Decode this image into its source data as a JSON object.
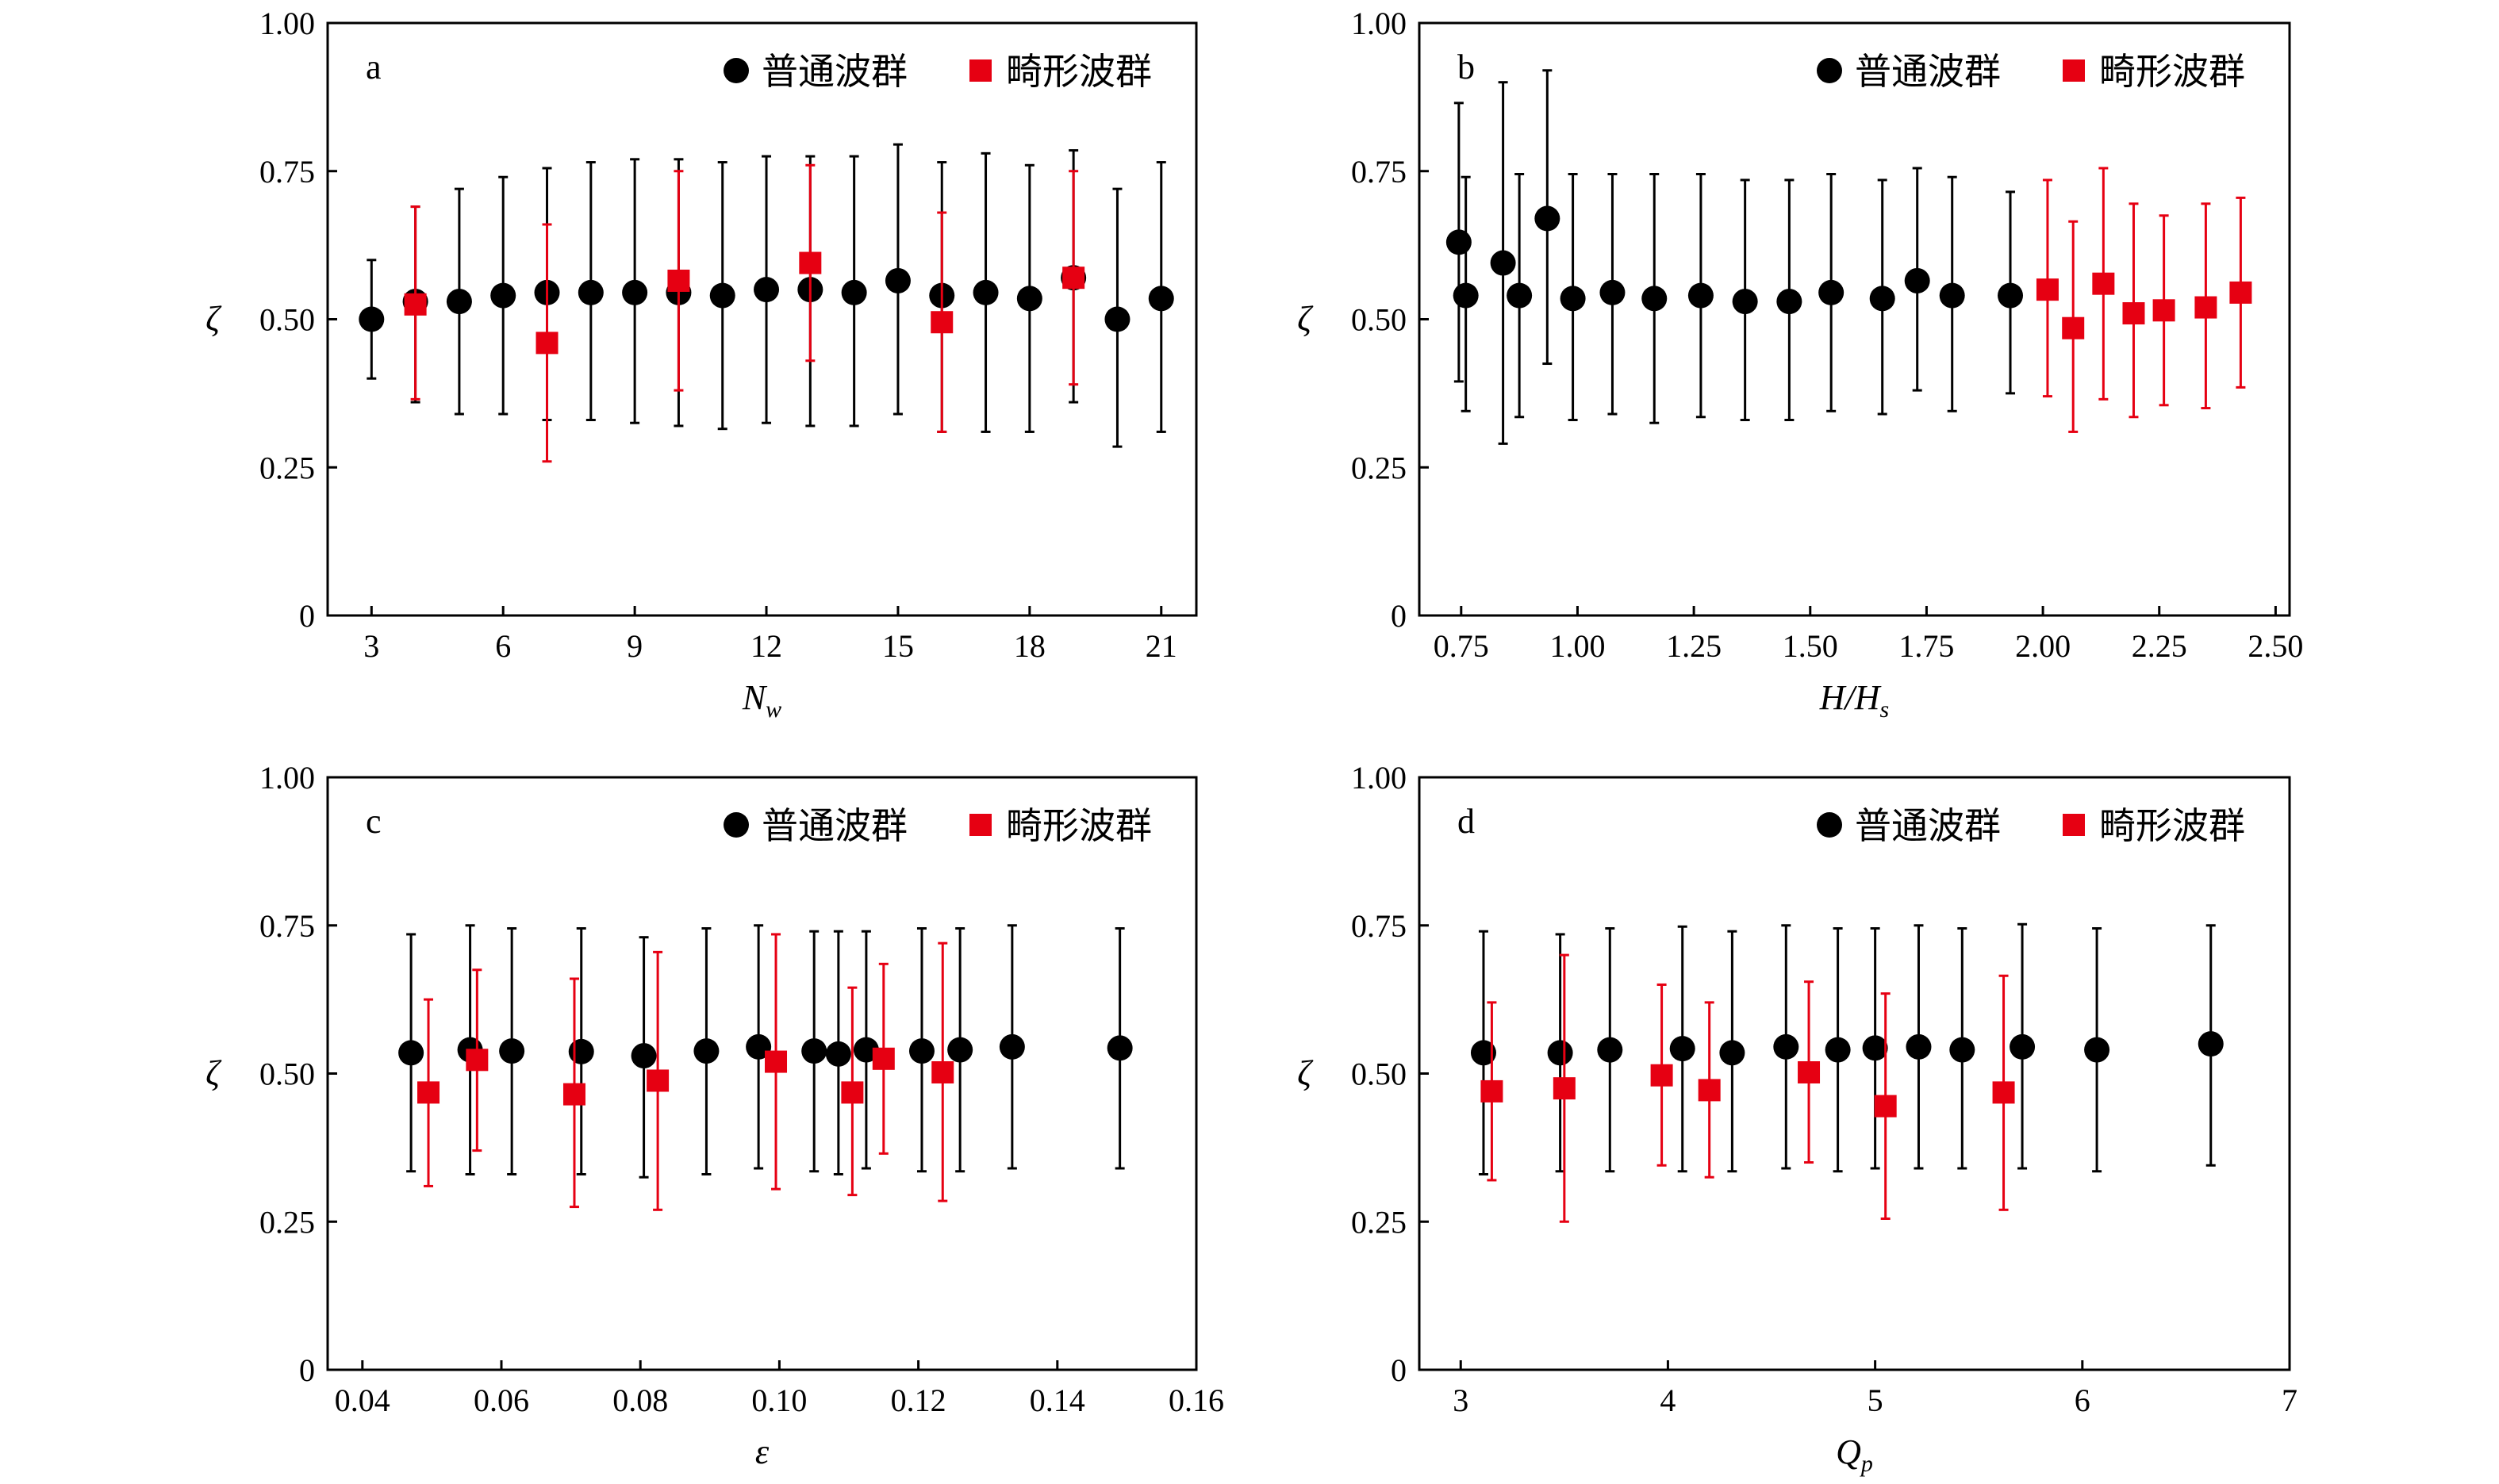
{
  "chart_data": [
    {
      "type": "scatter",
      "panel_label": "a",
      "xlabel": "N",
      "xlabel_sub": "w",
      "ylabel": "ζ",
      "xlim": [
        2,
        21.8
      ],
      "ylim": [
        0,
        1
      ],
      "xticks": [
        3,
        6,
        9,
        12,
        15,
        18,
        21
      ],
      "xtick_labels": [
        "3",
        "6",
        "9",
        "12",
        "15",
        "18",
        "21"
      ],
      "yticks": [
        0,
        0.25,
        0.5,
        0.75,
        1
      ],
      "ytick_labels": [
        "0",
        "0.25",
        "0.50",
        "0.75",
        "1.00"
      ],
      "legend": "top-right",
      "series": [
        {
          "name": "普通波群",
          "marker": "circle",
          "color": "#000000",
          "points": [
            {
              "x": 3,
              "y": 0.5,
              "lo": 0.4,
              "hi": 0.6
            },
            {
              "x": 4,
              "y": 0.53,
              "lo": 0.36,
              "hi": 0.69
            },
            {
              "x": 5,
              "y": 0.53,
              "lo": 0.34,
              "hi": 0.72
            },
            {
              "x": 6,
              "y": 0.54,
              "lo": 0.34,
              "hi": 0.74
            },
            {
              "x": 7,
              "y": 0.545,
              "lo": 0.33,
              "hi": 0.755
            },
            {
              "x": 8,
              "y": 0.545,
              "lo": 0.33,
              "hi": 0.765
            },
            {
              "x": 9,
              "y": 0.545,
              "lo": 0.325,
              "hi": 0.77
            },
            {
              "x": 10,
              "y": 0.545,
              "lo": 0.32,
              "hi": 0.77
            },
            {
              "x": 11,
              "y": 0.54,
              "lo": 0.315,
              "hi": 0.765
            },
            {
              "x": 12,
              "y": 0.55,
              "lo": 0.325,
              "hi": 0.775
            },
            {
              "x": 13,
              "y": 0.55,
              "lo": 0.32,
              "hi": 0.775
            },
            {
              "x": 14,
              "y": 0.545,
              "lo": 0.32,
              "hi": 0.775
            },
            {
              "x": 15,
              "y": 0.565,
              "lo": 0.34,
              "hi": 0.795
            },
            {
              "x": 16,
              "y": 0.54,
              "lo": 0.31,
              "hi": 0.765
            },
            {
              "x": 17,
              "y": 0.545,
              "lo": 0.31,
              "hi": 0.78
            },
            {
              "x": 18,
              "y": 0.535,
              "lo": 0.31,
              "hi": 0.76
            },
            {
              "x": 19,
              "y": 0.57,
              "lo": 0.36,
              "hi": 0.785
            },
            {
              "x": 20,
              "y": 0.5,
              "lo": 0.285,
              "hi": 0.72
            },
            {
              "x": 21,
              "y": 0.535,
              "lo": 0.31,
              "hi": 0.765
            }
          ]
        },
        {
          "name": "畸形波群",
          "marker": "square",
          "color": "#e60012",
          "points": [
            {
              "x": 4,
              "y": 0.525,
              "lo": 0.365,
              "hi": 0.69
            },
            {
              "x": 7,
              "y": 0.46,
              "lo": 0.26,
              "hi": 0.66
            },
            {
              "x": 10,
              "y": 0.565,
              "lo": 0.38,
              "hi": 0.75
            },
            {
              "x": 13,
              "y": 0.595,
              "lo": 0.43,
              "hi": 0.76
            },
            {
              "x": 16,
              "y": 0.495,
              "lo": 0.31,
              "hi": 0.68
            },
            {
              "x": 19,
              "y": 0.57,
              "lo": 0.39,
              "hi": 0.75
            }
          ]
        }
      ]
    },
    {
      "type": "scatter",
      "panel_label": "b",
      "xlabel": "H/H",
      "xlabel_sub": "s",
      "ylabel": "ζ",
      "xlim": [
        0.66,
        2.53
      ],
      "ylim": [
        0,
        1
      ],
      "xticks": [
        0.75,
        1.0,
        1.25,
        1.5,
        1.75,
        2.0,
        2.25,
        2.5
      ],
      "xtick_labels": [
        "0.75",
        "1.00",
        "1.25",
        "1.50",
        "1.75",
        "2.00",
        "2.25",
        "2.50"
      ],
      "yticks": [
        0,
        0.25,
        0.5,
        0.75,
        1
      ],
      "ytick_labels": [
        "0",
        "0.25",
        "0.50",
        "0.75",
        "1.00"
      ],
      "legend": "top-right",
      "series": [
        {
          "name": "普通波群",
          "marker": "circle",
          "color": "#000000",
          "points": [
            {
              "x": 0.745,
              "y": 0.63,
              "lo": 0.395,
              "hi": 0.865
            },
            {
              "x": 0.76,
              "y": 0.54,
              "lo": 0.345,
              "hi": 0.74
            },
            {
              "x": 0.84,
              "y": 0.595,
              "lo": 0.29,
              "hi": 0.9
            },
            {
              "x": 0.875,
              "y": 0.54,
              "lo": 0.335,
              "hi": 0.745
            },
            {
              "x": 0.935,
              "y": 0.67,
              "lo": 0.425,
              "hi": 0.92
            },
            {
              "x": 0.99,
              "y": 0.535,
              "lo": 0.33,
              "hi": 0.745
            },
            {
              "x": 1.075,
              "y": 0.545,
              "lo": 0.34,
              "hi": 0.745
            },
            {
              "x": 1.165,
              "y": 0.535,
              "lo": 0.325,
              "hi": 0.745
            },
            {
              "x": 1.265,
              "y": 0.54,
              "lo": 0.335,
              "hi": 0.745
            },
            {
              "x": 1.36,
              "y": 0.53,
              "lo": 0.33,
              "hi": 0.735
            },
            {
              "x": 1.455,
              "y": 0.53,
              "lo": 0.33,
              "hi": 0.735
            },
            {
              "x": 1.545,
              "y": 0.545,
              "lo": 0.345,
              "hi": 0.745
            },
            {
              "x": 1.655,
              "y": 0.535,
              "lo": 0.34,
              "hi": 0.735
            },
            {
              "x": 1.73,
              "y": 0.565,
              "lo": 0.38,
              "hi": 0.755
            },
            {
              "x": 1.805,
              "y": 0.54,
              "lo": 0.345,
              "hi": 0.74
            },
            {
              "x": 1.93,
              "y": 0.54,
              "lo": 0.375,
              "hi": 0.715
            }
          ]
        },
        {
          "name": "畸形波群",
          "marker": "square",
          "color": "#e60012",
          "points": [
            {
              "x": 2.01,
              "y": 0.55,
              "lo": 0.37,
              "hi": 0.735
            },
            {
              "x": 2.065,
              "y": 0.485,
              "lo": 0.31,
              "hi": 0.665
            },
            {
              "x": 2.13,
              "y": 0.56,
              "lo": 0.365,
              "hi": 0.755
            },
            {
              "x": 2.195,
              "y": 0.51,
              "lo": 0.335,
              "hi": 0.695
            },
            {
              "x": 2.26,
              "y": 0.515,
              "lo": 0.355,
              "hi": 0.675
            },
            {
              "x": 2.35,
              "y": 0.52,
              "lo": 0.35,
              "hi": 0.695
            },
            {
              "x": 2.425,
              "y": 0.545,
              "lo": 0.385,
              "hi": 0.705
            }
          ]
        }
      ]
    },
    {
      "type": "scatter",
      "panel_label": "c",
      "xlabel": "ε",
      "xlabel_sub": "",
      "ylabel": "ζ",
      "xlim": [
        0.035,
        0.16
      ],
      "ylim": [
        0,
        1
      ],
      "xticks": [
        0.04,
        0.06,
        0.08,
        0.1,
        0.12,
        0.14,
        0.16
      ],
      "xtick_labels": [
        "0.04",
        "0.06",
        "0.08",
        "0.10",
        "0.12",
        "0.14",
        "0.16"
      ],
      "yticks": [
        0,
        0.25,
        0.5,
        0.75,
        1
      ],
      "ytick_labels": [
        "0",
        "0.25",
        "0.50",
        "0.75",
        "1.00"
      ],
      "legend": "top-right",
      "series": [
        {
          "name": "普通波群",
          "marker": "circle",
          "color": "#000000",
          "points": [
            {
              "x": 0.047,
              "y": 0.535,
              "lo": 0.335,
              "hi": 0.735
            },
            {
              "x": 0.0555,
              "y": 0.54,
              "lo": 0.33,
              "hi": 0.75
            },
            {
              "x": 0.0615,
              "y": 0.538,
              "lo": 0.33,
              "hi": 0.745
            },
            {
              "x": 0.0715,
              "y": 0.537,
              "lo": 0.33,
              "hi": 0.745
            },
            {
              "x": 0.0805,
              "y": 0.53,
              "lo": 0.325,
              "hi": 0.73
            },
            {
              "x": 0.0895,
              "y": 0.538,
              "lo": 0.33,
              "hi": 0.745
            },
            {
              "x": 0.097,
              "y": 0.545,
              "lo": 0.34,
              "hi": 0.75
            },
            {
              "x": 0.105,
              "y": 0.538,
              "lo": 0.335,
              "hi": 0.74
            },
            {
              "x": 0.1085,
              "y": 0.533,
              "lo": 0.33,
              "hi": 0.74
            },
            {
              "x": 0.1125,
              "y": 0.54,
              "lo": 0.34,
              "hi": 0.74
            },
            {
              "x": 0.1205,
              "y": 0.538,
              "lo": 0.335,
              "hi": 0.745
            },
            {
              "x": 0.126,
              "y": 0.54,
              "lo": 0.335,
              "hi": 0.745
            },
            {
              "x": 0.1335,
              "y": 0.545,
              "lo": 0.34,
              "hi": 0.75
            },
            {
              "x": 0.149,
              "y": 0.543,
              "lo": 0.34,
              "hi": 0.745
            }
          ]
        },
        {
          "name": "畸形波群",
          "marker": "square",
          "color": "#e60012",
          "points": [
            {
              "x": 0.0495,
              "y": 0.468,
              "lo": 0.31,
              "hi": 0.625
            },
            {
              "x": 0.0565,
              "y": 0.523,
              "lo": 0.37,
              "hi": 0.675
            },
            {
              "x": 0.0705,
              "y": 0.465,
              "lo": 0.275,
              "hi": 0.66
            },
            {
              "x": 0.0825,
              "y": 0.488,
              "lo": 0.27,
              "hi": 0.705
            },
            {
              "x": 0.0995,
              "y": 0.52,
              "lo": 0.305,
              "hi": 0.735
            },
            {
              "x": 0.1105,
              "y": 0.468,
              "lo": 0.295,
              "hi": 0.645
            },
            {
              "x": 0.115,
              "y": 0.525,
              "lo": 0.365,
              "hi": 0.685
            },
            {
              "x": 0.1235,
              "y": 0.502,
              "lo": 0.285,
              "hi": 0.72
            }
          ]
        }
      ]
    },
    {
      "type": "scatter",
      "panel_label": "d",
      "xlabel": "Q",
      "xlabel_sub": "p",
      "ylabel": "ζ",
      "xlim": [
        2.8,
        7
      ],
      "ylim": [
        0,
        1
      ],
      "xticks": [
        3,
        4,
        5,
        6,
        7
      ],
      "xtick_labels": [
        "3",
        "4",
        "5",
        "6",
        "7"
      ],
      "yticks": [
        0,
        0.25,
        0.5,
        0.75,
        1
      ],
      "ytick_labels": [
        "0",
        "0.25",
        "0.50",
        "0.75",
        "1.00"
      ],
      "legend": "top-right",
      "series": [
        {
          "name": "普通波群",
          "marker": "circle",
          "color": "#000000",
          "points": [
            {
              "x": 3.11,
              "y": 0.535,
              "lo": 0.33,
              "hi": 0.74
            },
            {
              "x": 3.48,
              "y": 0.535,
              "lo": 0.335,
              "hi": 0.735
            },
            {
              "x": 3.72,
              "y": 0.54,
              "lo": 0.335,
              "hi": 0.745
            },
            {
              "x": 4.07,
              "y": 0.542,
              "lo": 0.335,
              "hi": 0.748
            },
            {
              "x": 4.31,
              "y": 0.535,
              "lo": 0.335,
              "hi": 0.74
            },
            {
              "x": 4.57,
              "y": 0.545,
              "lo": 0.34,
              "hi": 0.75
            },
            {
              "x": 4.82,
              "y": 0.54,
              "lo": 0.335,
              "hi": 0.745
            },
            {
              "x": 5.0,
              "y": 0.543,
              "lo": 0.34,
              "hi": 0.745
            },
            {
              "x": 5.21,
              "y": 0.545,
              "lo": 0.34,
              "hi": 0.75
            },
            {
              "x": 5.42,
              "y": 0.54,
              "lo": 0.34,
              "hi": 0.745
            },
            {
              "x": 5.71,
              "y": 0.545,
              "lo": 0.34,
              "hi": 0.752
            },
            {
              "x": 6.07,
              "y": 0.54,
              "lo": 0.335,
              "hi": 0.745
            },
            {
              "x": 6.62,
              "y": 0.55,
              "lo": 0.345,
              "hi": 0.75
            }
          ]
        },
        {
          "name": "畸形波群",
          "marker": "square",
          "color": "#e60012",
          "points": [
            {
              "x": 3.15,
              "y": 0.47,
              "lo": 0.32,
              "hi": 0.62
            },
            {
              "x": 3.5,
              "y": 0.475,
              "lo": 0.25,
              "hi": 0.7
            },
            {
              "x": 3.97,
              "y": 0.497,
              "lo": 0.345,
              "hi": 0.65
            },
            {
              "x": 4.2,
              "y": 0.472,
              "lo": 0.325,
              "hi": 0.62
            },
            {
              "x": 4.68,
              "y": 0.502,
              "lo": 0.35,
              "hi": 0.655
            },
            {
              "x": 5.05,
              "y": 0.445,
              "lo": 0.255,
              "hi": 0.635
            },
            {
              "x": 5.62,
              "y": 0.468,
              "lo": 0.27,
              "hi": 0.665
            }
          ]
        }
      ]
    }
  ]
}
